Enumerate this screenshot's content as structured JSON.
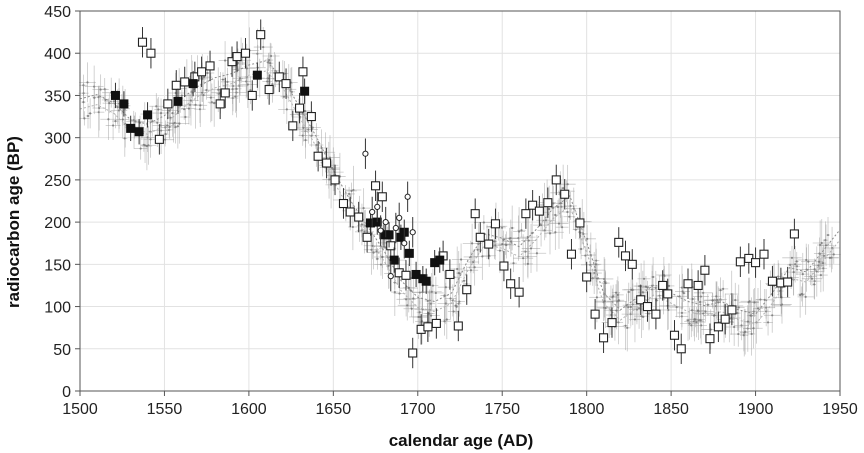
{
  "chart_data": {
    "type": "scatter",
    "xlabel": "calendar age (AD)",
    "ylabel": "radiocarbon age (BP)",
    "xlim": [
      1500,
      1950
    ],
    "ylim": [
      0,
      450
    ],
    "x_ticks": [
      1500,
      1550,
      1600,
      1650,
      1700,
      1750,
      1800,
      1850,
      1900,
      1950
    ],
    "y_ticks": [
      0,
      50,
      100,
      150,
      200,
      250,
      300,
      350,
      400,
      450
    ],
    "grid": true,
    "legend": "none",
    "colors": {
      "open_square": "#ffffff",
      "filled_square": "#111111",
      "open_circle": "#ffffff",
      "background_cloud": "#9a9a9a",
      "grid": "#e2e2e2",
      "frame": "#555555"
    },
    "series": [
      {
        "marker": "open-square",
        "points": [
          {
            "x": 1537,
            "y": 413
          },
          {
            "x": 1542,
            "y": 400
          },
          {
            "x": 1547,
            "y": 298
          },
          {
            "x": 1552,
            "y": 340
          },
          {
            "x": 1557,
            "y": 362
          },
          {
            "x": 1562,
            "y": 366
          },
          {
            "x": 1568,
            "y": 372
          },
          {
            "x": 1572,
            "y": 378
          },
          {
            "x": 1577,
            "y": 385
          },
          {
            "x": 1583,
            "y": 340
          },
          {
            "x": 1586,
            "y": 353
          },
          {
            "x": 1590,
            "y": 390
          },
          {
            "x": 1593,
            "y": 396
          },
          {
            "x": 1598,
            "y": 400
          },
          {
            "x": 1602,
            "y": 350
          },
          {
            "x": 1607,
            "y": 422
          },
          {
            "x": 1612,
            "y": 357
          },
          {
            "x": 1618,
            "y": 372
          },
          {
            "x": 1622,
            "y": 364
          },
          {
            "x": 1626,
            "y": 314
          },
          {
            "x": 1630,
            "y": 335
          },
          {
            "x": 1632,
            "y": 378
          },
          {
            "x": 1637,
            "y": 325
          },
          {
            "x": 1641,
            "y": 278
          },
          {
            "x": 1646,
            "y": 270
          },
          {
            "x": 1651,
            "y": 250
          },
          {
            "x": 1656,
            "y": 222
          },
          {
            "x": 1660,
            "y": 212
          },
          {
            "x": 1665,
            "y": 206
          },
          {
            "x": 1670,
            "y": 182
          },
          {
            "x": 1675,
            "y": 243
          },
          {
            "x": 1679,
            "y": 230
          },
          {
            "x": 1684,
            "y": 172
          },
          {
            "x": 1689,
            "y": 140
          },
          {
            "x": 1693,
            "y": 137
          },
          {
            "x": 1697,
            "y": 45
          },
          {
            "x": 1702,
            "y": 73
          },
          {
            "x": 1706,
            "y": 76
          },
          {
            "x": 1711,
            "y": 80
          },
          {
            "x": 1715,
            "y": 160
          },
          {
            "x": 1719,
            "y": 138
          },
          {
            "x": 1724,
            "y": 77
          },
          {
            "x": 1729,
            "y": 120
          },
          {
            "x": 1734,
            "y": 210
          },
          {
            "x": 1737,
            "y": 182
          },
          {
            "x": 1742,
            "y": 174
          },
          {
            "x": 1746,
            "y": 198
          },
          {
            "x": 1751,
            "y": 148
          },
          {
            "x": 1755,
            "y": 127
          },
          {
            "x": 1760,
            "y": 117
          },
          {
            "x": 1764,
            "y": 210
          },
          {
            "x": 1768,
            "y": 220
          },
          {
            "x": 1772,
            "y": 213
          },
          {
            "x": 1777,
            "y": 223
          },
          {
            "x": 1782,
            "y": 250
          },
          {
            "x": 1787,
            "y": 233
          },
          {
            "x": 1791,
            "y": 162
          },
          {
            "x": 1796,
            "y": 199
          },
          {
            "x": 1800,
            "y": 135
          },
          {
            "x": 1805,
            "y": 91
          },
          {
            "x": 1810,
            "y": 63
          },
          {
            "x": 1815,
            "y": 81
          },
          {
            "x": 1819,
            "y": 176
          },
          {
            "x": 1823,
            "y": 160
          },
          {
            "x": 1827,
            "y": 150
          },
          {
            "x": 1832,
            "y": 108
          },
          {
            "x": 1836,
            "y": 100
          },
          {
            "x": 1841,
            "y": 91
          },
          {
            "x": 1845,
            "y": 125
          },
          {
            "x": 1848,
            "y": 115
          },
          {
            "x": 1852,
            "y": 66
          },
          {
            "x": 1856,
            "y": 50
          },
          {
            "x": 1860,
            "y": 127
          },
          {
            "x": 1866,
            "y": 125
          },
          {
            "x": 1870,
            "y": 143
          },
          {
            "x": 1873,
            "y": 62
          },
          {
            "x": 1878,
            "y": 76
          },
          {
            "x": 1882,
            "y": 85
          },
          {
            "x": 1886,
            "y": 96
          },
          {
            "x": 1891,
            "y": 153
          },
          {
            "x": 1896,
            "y": 157
          },
          {
            "x": 1900,
            "y": 152
          },
          {
            "x": 1905,
            "y": 162
          },
          {
            "x": 1910,
            "y": 130
          },
          {
            "x": 1915,
            "y": 128
          },
          {
            "x": 1919,
            "y": 129
          },
          {
            "x": 1923,
            "y": 186
          }
        ]
      },
      {
        "marker": "filled-square",
        "points": [
          {
            "x": 1521,
            "y": 350
          },
          {
            "x": 1526,
            "y": 340
          },
          {
            "x": 1530,
            "y": 311
          },
          {
            "x": 1535,
            "y": 307
          },
          {
            "x": 1540,
            "y": 327
          },
          {
            "x": 1558,
            "y": 343
          },
          {
            "x": 1567,
            "y": 364
          },
          {
            "x": 1605,
            "y": 374
          },
          {
            "x": 1633,
            "y": 355
          },
          {
            "x": 1672,
            "y": 199
          },
          {
            "x": 1676,
            "y": 200
          },
          {
            "x": 1680,
            "y": 185
          },
          {
            "x": 1683,
            "y": 185
          },
          {
            "x": 1686,
            "y": 155
          },
          {
            "x": 1690,
            "y": 182
          },
          {
            "x": 1692,
            "y": 188
          },
          {
            "x": 1695,
            "y": 163
          },
          {
            "x": 1699,
            "y": 138
          },
          {
            "x": 1703,
            "y": 133
          },
          {
            "x": 1705,
            "y": 130
          },
          {
            "x": 1710,
            "y": 152
          },
          {
            "x": 1713,
            "y": 155
          }
        ]
      },
      {
        "marker": "open-circle",
        "points": [
          {
            "x": 1669,
            "y": 281
          },
          {
            "x": 1673,
            "y": 212
          },
          {
            "x": 1676,
            "y": 218
          },
          {
            "x": 1678,
            "y": 190
          },
          {
            "x": 1681,
            "y": 200
          },
          {
            "x": 1684,
            "y": 136
          },
          {
            "x": 1687,
            "y": 193
          },
          {
            "x": 1689,
            "y": 205
          },
          {
            "x": 1692,
            "y": 175
          },
          {
            "x": 1694,
            "y": 230
          },
          {
            "x": 1697,
            "y": 188
          }
        ]
      }
    ],
    "background_curve": {
      "x": [
        1500,
        1510,
        1520,
        1530,
        1540,
        1550,
        1560,
        1570,
        1580,
        1590,
        1600,
        1610,
        1620,
        1630,
        1640,
        1650,
        1660,
        1670,
        1680,
        1690,
        1700,
        1710,
        1720,
        1730,
        1740,
        1750,
        1760,
        1770,
        1780,
        1790,
        1800,
        1810,
        1820,
        1830,
        1840,
        1850,
        1860,
        1870,
        1880,
        1890,
        1900,
        1910,
        1920,
        1930,
        1940,
        1950
      ],
      "y": [
        340,
        345,
        335,
        315,
        310,
        320,
        340,
        355,
        365,
        370,
        380,
        385,
        365,
        330,
        295,
        255,
        220,
        190,
        160,
        125,
        105,
        100,
        110,
        150,
        180,
        175,
        165,
        185,
        210,
        225,
        170,
        110,
        90,
        105,
        120,
        110,
        100,
        95,
        100,
        90,
        85,
        110,
        140,
        135,
        160,
        185
      ]
    }
  }
}
